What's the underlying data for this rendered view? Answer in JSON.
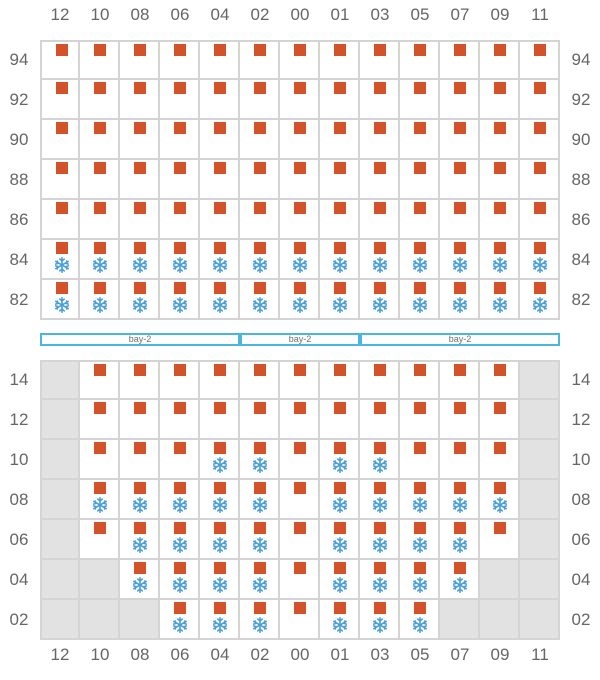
{
  "colors": {
    "container": "#d4522a",
    "reefer": "#4a9fd8",
    "bay_border": "#4ab6e0",
    "blocked": "#e2e2e3",
    "grid": "#d4d4d4"
  },
  "icons": {
    "container": "square-marker",
    "reefer": "snowflake-icon"
  },
  "columns": [
    "12",
    "10",
    "08",
    "06",
    "04",
    "02",
    "00",
    "01",
    "03",
    "05",
    "07",
    "09",
    "11"
  ],
  "deck": {
    "rows": [
      {
        "label": "94",
        "cells": [
          "b",
          "b",
          "b",
          "b",
          "b",
          "b",
          "b",
          "b",
          "b",
          "b",
          "b",
          "b",
          "b"
        ]
      },
      {
        "label": "92",
        "cells": [
          "b",
          "b",
          "b",
          "b",
          "b",
          "b",
          "b",
          "b",
          "b",
          "b",
          "b",
          "b",
          "b"
        ]
      },
      {
        "label": "90",
        "cells": [
          "b",
          "b",
          "b",
          "b",
          "b",
          "b",
          "b",
          "b",
          "b",
          "b",
          "b",
          "b",
          "b"
        ]
      },
      {
        "label": "88",
        "cells": [
          "b",
          "b",
          "b",
          "b",
          "b",
          "b",
          "b",
          "b",
          "b",
          "b",
          "b",
          "b",
          "b"
        ]
      },
      {
        "label": "86",
        "cells": [
          "b",
          "b",
          "b",
          "b",
          "b",
          "b",
          "b",
          "b",
          "b",
          "b",
          "b",
          "b",
          "b"
        ]
      },
      {
        "label": "84",
        "cells": [
          "br",
          "br",
          "br",
          "br",
          "br",
          "br",
          "br",
          "br",
          "br",
          "br",
          "br",
          "br",
          "br"
        ]
      },
      {
        "label": "82",
        "cells": [
          "br",
          "br",
          "br",
          "br",
          "br",
          "br",
          "br",
          "br",
          "br",
          "br",
          "br",
          "br",
          "br"
        ]
      }
    ]
  },
  "bay_labels": [
    {
      "text": "bay-2",
      "start_col": 0,
      "span": 5
    },
    {
      "text": "bay-2",
      "start_col": 5,
      "span": 3
    },
    {
      "text": "bay-2",
      "start_col": 8,
      "span": 5
    }
  ],
  "hold": {
    "rows": [
      {
        "label": "14",
        "cells": [
          "x",
          "b",
          "b",
          "b",
          "b",
          "b",
          "b",
          "b",
          "b",
          "b",
          "b",
          "b",
          "x"
        ]
      },
      {
        "label": "12",
        "cells": [
          "x",
          "b",
          "b",
          "b",
          "b",
          "b",
          "b",
          "b",
          "b",
          "b",
          "b",
          "b",
          "x"
        ]
      },
      {
        "label": "10",
        "cells": [
          "x",
          "b",
          "b",
          "b",
          "br",
          "br",
          "b",
          "br",
          "br",
          "b",
          "b",
          "b",
          "x"
        ]
      },
      {
        "label": "08",
        "cells": [
          "x",
          "br",
          "br",
          "br",
          "br",
          "br",
          "b",
          "br",
          "br",
          "br",
          "br",
          "br",
          "x"
        ]
      },
      {
        "label": "06",
        "cells": [
          "x",
          "b",
          "br",
          "br",
          "br",
          "br",
          "b",
          "br",
          "br",
          "br",
          "br",
          "b",
          "x"
        ]
      },
      {
        "label": "04",
        "cells": [
          "x",
          "x",
          "br",
          "br",
          "br",
          "br",
          "b",
          "br",
          "br",
          "br",
          "br",
          "x",
          "x"
        ]
      },
      {
        "label": "02",
        "cells": [
          "x",
          "x",
          "x",
          "br",
          "br",
          "br",
          "b",
          "br",
          "br",
          "br",
          "x",
          "x",
          "x"
        ]
      }
    ]
  }
}
